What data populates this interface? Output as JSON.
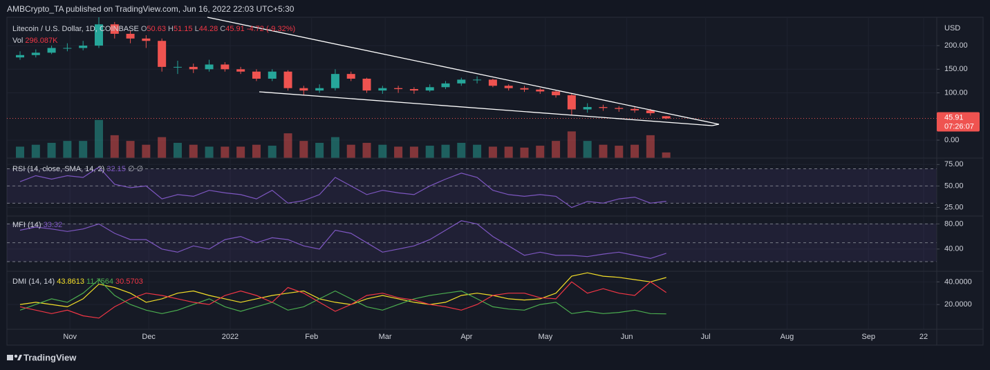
{
  "header": {
    "text": "AMBCrypto_TA published on TradingView.com, Jun 16, 2022 22:03 UTC+5:30"
  },
  "footer": {
    "brand": "TradingView"
  },
  "chart_data": [
    {
      "type": "candlestick",
      "title": "Litecoin / U.S. Dollar, 1D, COINBASE",
      "currency": "USD",
      "countdown": "07:26:07",
      "legend": {
        "labels": [
          "O",
          "H",
          "L",
          "C"
        ],
        "change": -4.72,
        "change_pct": "(-9.32%)"
      },
      "up_color": "#26a69a",
      "down_color": "#ef5350",
      "x": [
        "2021-10-13",
        "2021-10-19",
        "2021-10-25",
        "2021-10-31",
        "2021-11-06",
        "2021-11-12",
        "2021-11-18",
        "2021-11-24",
        "2021-11-30",
        "2021-12-06",
        "2021-12-12",
        "2021-12-18",
        "2021-12-24",
        "2021-12-30",
        "2022-01-05",
        "2022-01-11",
        "2022-01-17",
        "2022-01-23",
        "2022-01-29",
        "2022-02-04",
        "2022-02-10",
        "2022-02-16",
        "2022-02-22",
        "2022-02-28",
        "2022-03-06",
        "2022-03-12",
        "2022-03-18",
        "2022-03-24",
        "2022-03-30",
        "2022-04-05",
        "2022-04-11",
        "2022-04-17",
        "2022-04-23",
        "2022-04-29",
        "2022-05-05",
        "2022-05-11",
        "2022-05-17",
        "2022-05-23",
        "2022-05-29",
        "2022-06-04",
        "2022-06-10",
        "2022-06-16"
      ],
      "open": [
        175,
        180,
        185,
        195,
        195,
        200,
        245,
        225,
        215,
        210,
        155,
        155,
        150,
        160,
        150,
        145,
        130,
        145,
        110,
        105,
        110,
        140,
        130,
        105,
        110,
        108,
        105,
        112,
        120,
        128,
        128,
        115,
        110,
        107,
        103,
        95,
        65,
        70,
        68,
        66,
        63,
        50.63
      ],
      "high": [
        188,
        192,
        200,
        205,
        210,
        270,
        250,
        232,
        222,
        215,
        168,
        162,
        170,
        165,
        155,
        150,
        150,
        148,
        115,
        118,
        150,
        145,
        132,
        115,
        115,
        112,
        118,
        125,
        132,
        135,
        130,
        118,
        115,
        110,
        105,
        98,
        78,
        75,
        72,
        70,
        66,
        51.15
      ],
      "low": [
        170,
        175,
        182,
        188,
        190,
        195,
        215,
        205,
        195,
        145,
        140,
        142,
        145,
        145,
        140,
        125,
        125,
        105,
        95,
        100,
        105,
        125,
        100,
        98,
        100,
        98,
        102,
        108,
        115,
        120,
        112,
        105,
        102,
        98,
        90,
        52,
        58,
        62,
        60,
        58,
        52,
        44.28
      ],
      "close": [
        180,
        185,
        195,
        195,
        200,
        245,
        225,
        215,
        210,
        155,
        155,
        150,
        160,
        150,
        145,
        130,
        145,
        110,
        105,
        110,
        140,
        130,
        105,
        110,
        108,
        105,
        112,
        120,
        128,
        128,
        115,
        110,
        107,
        103,
        95,
        65,
        70,
        68,
        66,
        63,
        57,
        45.91
      ],
      "xlim": [
        "2021-10-08",
        "2022-09-27"
      ],
      "xticks": [
        {
          "value": "2021-11-01",
          "label": "Nov"
        },
        {
          "value": "2021-12-01",
          "label": "Dec"
        },
        {
          "value": "2022-01-01",
          "label": "2022"
        },
        {
          "value": "2022-02-01",
          "label": "Feb"
        },
        {
          "value": "2022-03-01",
          "label": "Mar"
        },
        {
          "value": "2022-04-01",
          "label": "Apr"
        },
        {
          "value": "2022-05-01",
          "label": "May"
        },
        {
          "value": "2022-06-01",
          "label": "Jun"
        },
        {
          "value": "2022-07-01",
          "label": "Jul"
        },
        {
          "value": "2022-08-01",
          "label": "Aug"
        },
        {
          "value": "2022-09-01",
          "label": "Sep"
        },
        {
          "value": "2022-09-22",
          "label": "22"
        }
      ],
      "ylim": [
        -38,
        260
      ],
      "yticks": [
        {
          "value": 0,
          "label": "0.00"
        },
        {
          "value": 100,
          "label": "100.00"
        },
        {
          "value": 150,
          "label": "150.00"
        },
        {
          "value": 200,
          "label": "200.00"
        }
      ]
    },
    {
      "type": "bar",
      "title": "Vol",
      "legend_value": "296.087K",
      "ylim": [
        0,
        2500
      ],
      "values": [
        600,
        700,
        800,
        900,
        900,
        2000,
        1200,
        900,
        700,
        1100,
        800,
        700,
        600,
        600,
        600,
        700,
        650,
        1300,
        900,
        800,
        1100,
        700,
        800,
        700,
        600,
        600,
        650,
        700,
        800,
        700,
        600,
        600,
        550,
        650,
        900,
        1400,
        900,
        700,
        650,
        700,
        1200,
        296.087
      ]
    },
    {
      "type": "line",
      "title": "RSI (14, close, SMA, 14, 2)",
      "na_labels": [
        "∅",
        "∅"
      ],
      "color": "#7e57c2",
      "values": [
        55,
        62,
        58,
        62,
        60,
        72,
        52,
        48,
        50,
        35,
        40,
        38,
        45,
        42,
        40,
        35,
        45,
        30,
        33,
        40,
        60,
        50,
        40,
        45,
        42,
        40,
        50,
        58,
        65,
        60,
        45,
        40,
        38,
        40,
        38,
        25,
        32,
        30,
        35,
        37,
        30,
        32.15
      ],
      "bands": [
        30,
        50,
        70
      ],
      "ylim": [
        15,
        81.67
      ],
      "yticks": [
        {
          "value": 25,
          "label": "25.00"
        },
        {
          "value": 50,
          "label": "50.00"
        },
        {
          "value": 75,
          "label": "75.00"
        }
      ]
    },
    {
      "type": "line",
      "title": "MFI (14)",
      "color": "#7e57c2",
      "values": [
        70,
        75,
        72,
        68,
        72,
        80,
        65,
        55,
        55,
        40,
        35,
        45,
        40,
        55,
        60,
        50,
        58,
        55,
        45,
        40,
        70,
        65,
        50,
        35,
        40,
        45,
        55,
        70,
        85,
        80,
        60,
        45,
        30,
        35,
        30,
        30,
        28,
        32,
        35,
        30,
        25,
        33.32
      ],
      "bands": [
        20,
        50,
        80
      ],
      "ylim": [
        4.6,
        91.4
      ],
      "yticks": [
        {
          "value": 40,
          "label": "40.00"
        },
        {
          "value": 80,
          "label": "80.00"
        }
      ]
    },
    {
      "type": "line",
      "title": "DMI (14, 14)",
      "ylim": [
        -1.875,
        48.75
      ],
      "yticks": [
        {
          "value": 20,
          "label": "20.0000"
        },
        {
          "value": 40,
          "label": "40.0000"
        }
      ],
      "series": [
        {
          "color": "#f5e028",
          "values": [
            20,
            22,
            20,
            18,
            25,
            38,
            35,
            30,
            22,
            25,
            30,
            32,
            28,
            25,
            22,
            25,
            28,
            30,
            32,
            25,
            22,
            20,
            25,
            28,
            25,
            22,
            20,
            22,
            28,
            30,
            28,
            25,
            24,
            25,
            30,
            45,
            48,
            45,
            44,
            42,
            40,
            43.8613
          ]
        },
        {
          "color": "#4caf50",
          "values": [
            15,
            20,
            25,
            22,
            30,
            42,
            28,
            20,
            15,
            12,
            15,
            20,
            25,
            18,
            14,
            18,
            22,
            15,
            18,
            25,
            32,
            25,
            18,
            15,
            20,
            25,
            28,
            30,
            32,
            25,
            18,
            16,
            15,
            20,
            22,
            12,
            14,
            12,
            13,
            15,
            12,
            11.7564
          ]
        },
        {
          "color": "#f23645",
          "values": [
            18,
            15,
            12,
            15,
            10,
            8,
            18,
            25,
            30,
            28,
            25,
            22,
            20,
            28,
            32,
            28,
            22,
            35,
            30,
            22,
            14,
            20,
            28,
            30,
            26,
            24,
            20,
            18,
            15,
            20,
            28,
            30,
            30,
            26,
            25,
            40,
            30,
            34,
            30,
            28,
            40,
            30.5703
          ]
        }
      ]
    }
  ]
}
